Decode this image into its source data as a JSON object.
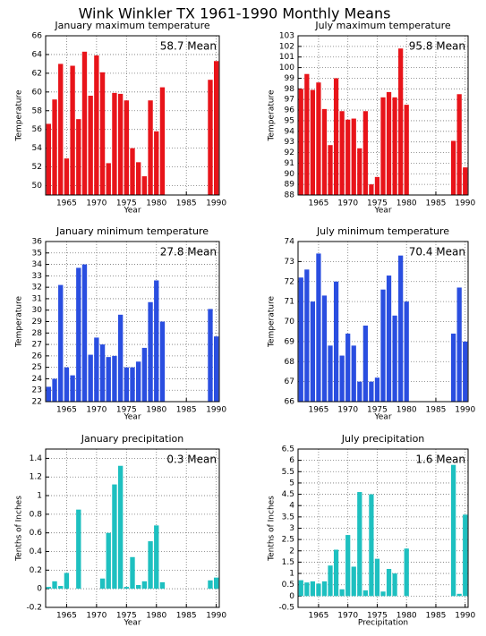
{
  "title": "Wink Winkler TX  1961-1990 Monthly Means",
  "chart_data": [
    {
      "type": "bar",
      "title": "January maximum temperature",
      "xlabel": "Year",
      "ylabel": "Temperature",
      "annotation": "58.7 Mean",
      "color": "#e8141a",
      "grid": true,
      "x": [
        1962,
        1963,
        1964,
        1965,
        1966,
        1967,
        1968,
        1969,
        1970,
        1971,
        1972,
        1973,
        1974,
        1975,
        1976,
        1977,
        1978,
        1979,
        1980,
        1981,
        1982,
        1983,
        1984,
        1985,
        1986,
        1987,
        1988,
        1989,
        1990
      ],
      "values": [
        56.6,
        59.2,
        63.0,
        52.9,
        62.8,
        57.1,
        64.3,
        59.6,
        63.9,
        62.1,
        52.4,
        59.9,
        59.8,
        59.1,
        54.0,
        52.5,
        51.0,
        59.1,
        55.8,
        60.5,
        null,
        null,
        null,
        null,
        null,
        null,
        null,
        61.3,
        63.3
      ],
      "xlim": [
        1961.5,
        1990.5
      ],
      "xticks": [
        1965,
        1970,
        1975,
        1980,
        1985,
        1990
      ],
      "ylim": [
        49,
        66
      ],
      "yticks": [
        50,
        52,
        54,
        56,
        58,
        60,
        62,
        64,
        66
      ]
    },
    {
      "type": "bar",
      "title": "July maximum temperature",
      "xlabel": "Year",
      "ylabel": "Temperature",
      "annotation": "95.8 Mean",
      "color": "#e8141a",
      "grid": true,
      "x": [
        1962,
        1963,
        1964,
        1965,
        1966,
        1967,
        1968,
        1969,
        1970,
        1971,
        1972,
        1973,
        1974,
        1975,
        1976,
        1977,
        1978,
        1979,
        1980,
        1981,
        1982,
        1983,
        1984,
        1985,
        1986,
        1987,
        1988,
        1989,
        1990
      ],
      "values": [
        98.0,
        99.4,
        97.9,
        98.6,
        96.1,
        92.7,
        99.0,
        95.9,
        95.1,
        95.2,
        92.4,
        95.9,
        89.0,
        89.7,
        97.2,
        97.7,
        97.2,
        101.8,
        96.5,
        null,
        null,
        null,
        null,
        null,
        null,
        null,
        93.1,
        97.5,
        90.6
      ],
      "xlim": [
        1961.5,
        1990.5
      ],
      "xticks": [
        1965,
        1970,
        1975,
        1980,
        1985,
        1990
      ],
      "ylim": [
        88,
        103
      ],
      "yticks": [
        88,
        89,
        90,
        91,
        92,
        93,
        94,
        95,
        96,
        97,
        98,
        99,
        100,
        101,
        102,
        103
      ]
    },
    {
      "type": "bar",
      "title": "January minimum temperature",
      "xlabel": "Year",
      "ylabel": "Temperature",
      "annotation": "27.8 Mean",
      "color": "#2a4ee0",
      "grid": true,
      "x": [
        1962,
        1963,
        1964,
        1965,
        1966,
        1967,
        1968,
        1969,
        1970,
        1971,
        1972,
        1973,
        1974,
        1975,
        1976,
        1977,
        1978,
        1979,
        1980,
        1981,
        1982,
        1983,
        1984,
        1985,
        1986,
        1987,
        1988,
        1989,
        1990
      ],
      "values": [
        23.3,
        24.0,
        32.2,
        25.0,
        24.3,
        33.7,
        34.0,
        26.1,
        27.6,
        27.0,
        25.9,
        26.0,
        29.6,
        25.0,
        25.0,
        25.5,
        26.7,
        30.7,
        32.6,
        29.0,
        null,
        null,
        null,
        null,
        null,
        null,
        null,
        30.1,
        27.7
      ],
      "xlim": [
        1961.5,
        1990.5
      ],
      "xticks": [
        1965,
        1970,
        1975,
        1980,
        1985,
        1990
      ],
      "ylim": [
        22,
        36
      ],
      "yticks": [
        22,
        23,
        24,
        25,
        26,
        27,
        28,
        29,
        30,
        31,
        32,
        33,
        34,
        35,
        36
      ]
    },
    {
      "type": "bar",
      "title": "July minimum temperature",
      "xlabel": "Year",
      "ylabel": "Temperature",
      "annotation": "70.4 Mean",
      "color": "#2a4ee0",
      "grid": true,
      "x": [
        1962,
        1963,
        1964,
        1965,
        1966,
        1967,
        1968,
        1969,
        1970,
        1971,
        1972,
        1973,
        1974,
        1975,
        1976,
        1977,
        1978,
        1979,
        1980,
        1981,
        1982,
        1983,
        1984,
        1985,
        1986,
        1987,
        1988,
        1989,
        1990
      ],
      "values": [
        72.2,
        72.6,
        71.0,
        73.4,
        71.3,
        68.8,
        72.0,
        68.3,
        69.4,
        68.8,
        67.0,
        69.8,
        67.0,
        67.2,
        71.6,
        72.3,
        70.3,
        73.3,
        71.0,
        null,
        null,
        null,
        null,
        null,
        null,
        null,
        69.4,
        71.7,
        69.0
      ],
      "xlim": [
        1961.5,
        1990.5
      ],
      "xticks": [
        1965,
        1970,
        1975,
        1980,
        1985,
        1990
      ],
      "ylim": [
        66,
        74
      ],
      "yticks": [
        66,
        67,
        68,
        69,
        70,
        71,
        72,
        73,
        74
      ]
    },
    {
      "type": "bar",
      "title": "January precipitation",
      "xlabel": "Year",
      "ylabel": "Tenths of Inches",
      "annotation": "0.3 Mean",
      "color": "#1ec0c0",
      "grid": true,
      "x": [
        1962,
        1963,
        1964,
        1965,
        1966,
        1967,
        1968,
        1969,
        1970,
        1971,
        1972,
        1973,
        1974,
        1975,
        1976,
        1977,
        1978,
        1979,
        1980,
        1981,
        1982,
        1983,
        1984,
        1985,
        1986,
        1987,
        1988,
        1989,
        1990
      ],
      "values": [
        0.02,
        0.08,
        0.03,
        0.17,
        0.0,
        0.85,
        0.0,
        0.0,
        0.0,
        0.11,
        0.6,
        1.12,
        1.32,
        0.02,
        0.34,
        0.04,
        0.08,
        0.51,
        0.68,
        0.07,
        null,
        null,
        null,
        null,
        null,
        null,
        null,
        0.09,
        0.12
      ],
      "xlim": [
        1961.5,
        1990.5
      ],
      "xticks": [
        1965,
        1970,
        1975,
        1980,
        1985,
        1990
      ],
      "ylim": [
        -0.2,
        1.5
      ],
      "yticks": [
        -0.2,
        0,
        0.2,
        0.4,
        0.6,
        0.8,
        1,
        1.2,
        1.4
      ]
    },
    {
      "type": "bar",
      "title": "July precipitation",
      "xlabel": "Precipitation",
      "ylabel": "Tenths of Inches",
      "annotation": "1.6 Mean",
      "color": "#1ec0c0",
      "grid": true,
      "x": [
        1962,
        1963,
        1964,
        1965,
        1966,
        1967,
        1968,
        1969,
        1970,
        1971,
        1972,
        1973,
        1974,
        1975,
        1976,
        1977,
        1978,
        1979,
        1980,
        1981,
        1982,
        1983,
        1984,
        1985,
        1986,
        1987,
        1988,
        1989,
        1990
      ],
      "values": [
        0.7,
        0.6,
        0.65,
        0.55,
        0.65,
        1.35,
        2.05,
        0.3,
        2.7,
        1.3,
        4.6,
        0.25,
        4.5,
        1.65,
        0.2,
        1.2,
        1.0,
        0.0,
        2.1,
        null,
        null,
        null,
        null,
        null,
        null,
        null,
        5.8,
        0.1,
        3.6
      ],
      "xlim": [
        1961.5,
        1990.5
      ],
      "xticks": [
        1965,
        1970,
        1975,
        1980,
        1985,
        1990
      ],
      "ylim": [
        -0.5,
        6.5
      ],
      "yticks": [
        -0.5,
        0,
        0.5,
        1,
        1.5,
        2,
        2.5,
        3,
        3.5,
        4,
        4.5,
        5,
        5.5,
        6,
        6.5
      ]
    }
  ]
}
